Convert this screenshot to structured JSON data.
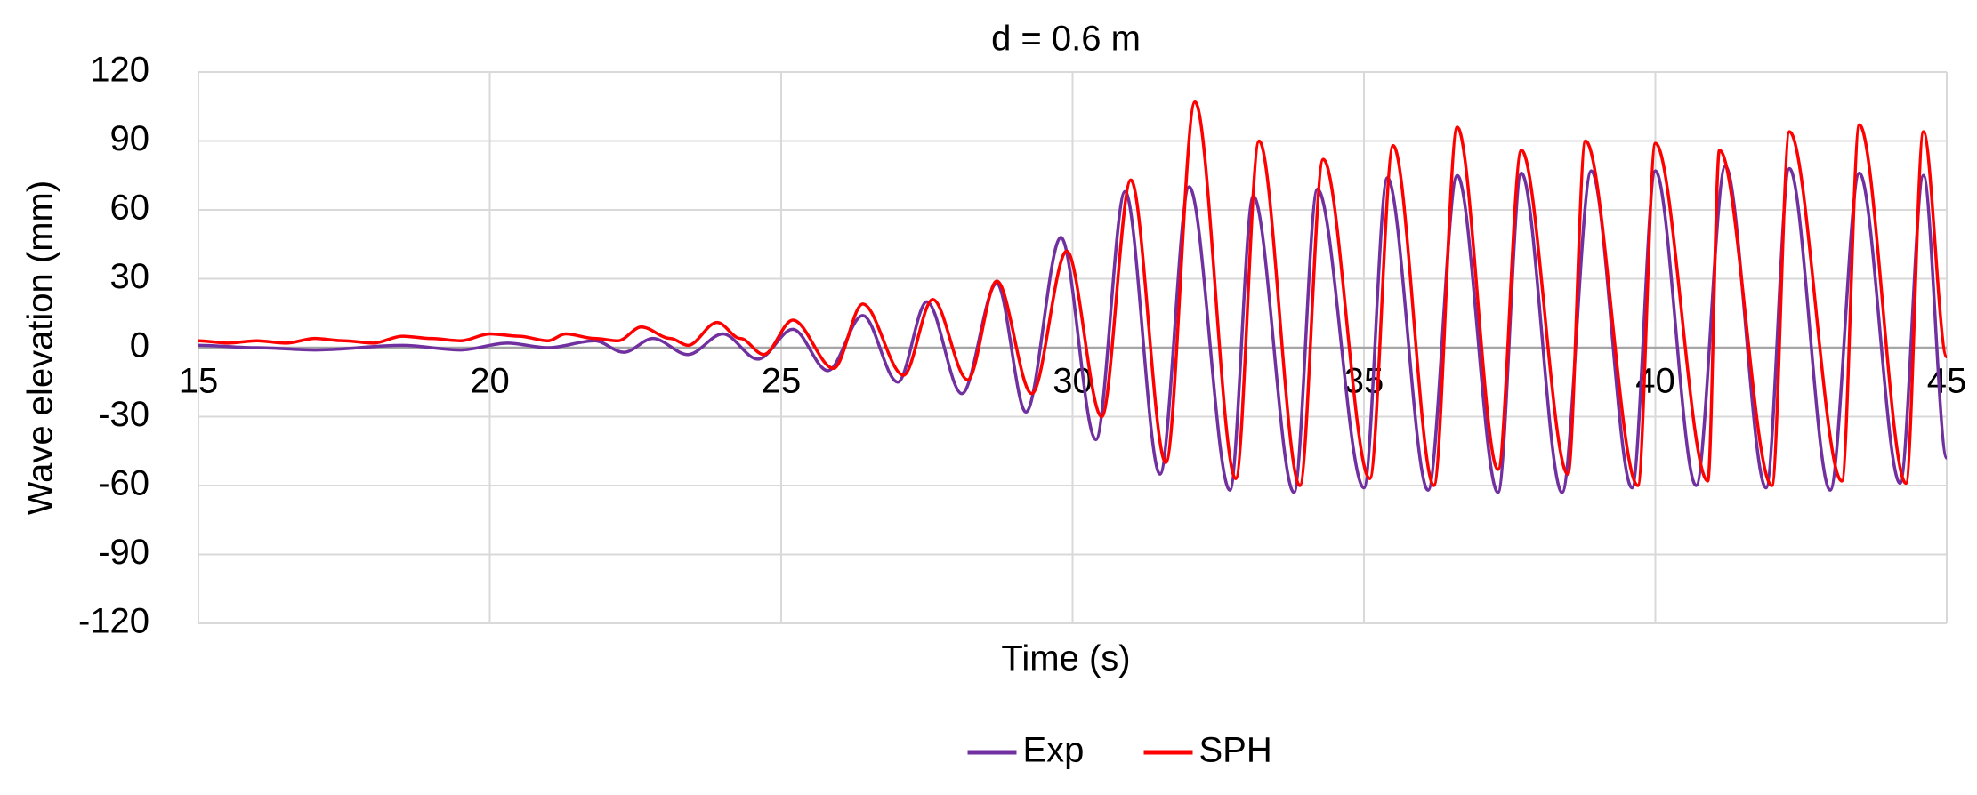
{
  "chart_data": {
    "type": "line",
    "title": "d = 0.6 m",
    "x_label": "Time (s)",
    "y_label": "Wave elevation (mm)",
    "xlim": [
      15,
      45
    ],
    "xticks": [
      15,
      20,
      25,
      30,
      35,
      40,
      45
    ],
    "ylim": [
      -120,
      120
    ],
    "yticks": [
      -120,
      -90,
      -60,
      -30,
      0,
      30,
      60,
      90,
      120
    ],
    "grid": true,
    "legend": "bottom",
    "series": [
      {
        "name": "Exp",
        "color": "#7030a0",
        "x": [
          15,
          16,
          17,
          18.5,
          19.5,
          20.3,
          21,
          21.8,
          22.3,
          22.8,
          23.4,
          24,
          24.6,
          25.2,
          25.8,
          26.4,
          27.0,
          27.5,
          28.1,
          28.7,
          29.2,
          29.8,
          30.4,
          30.9,
          31.5,
          32.0,
          32.7,
          33.1,
          33.8,
          34.2,
          35.0,
          35.4,
          36.1,
          36.6,
          37.3,
          37.7,
          38.4,
          38.9,
          39.6,
          40.0,
          40.7,
          41.2,
          41.9,
          42.3,
          43.0,
          43.5,
          44.2,
          44.6,
          45
        ],
        "values": [
          1,
          0,
          -1,
          1,
          -1,
          2,
          0,
          3,
          -2,
          4,
          -3,
          6,
          -5,
          8,
          -10,
          14,
          -15,
          20,
          -20,
          28,
          -28,
          48,
          -40,
          68,
          -55,
          70,
          -62,
          66,
          -63,
          69,
          -61,
          74,
          -62,
          75,
          -63,
          76,
          -63,
          77,
          -61,
          77,
          -60,
          79,
          -61,
          78,
          -62,
          76,
          -59,
          75,
          -48
        ]
      },
      {
        "name": "SPH",
        "color": "#ff0000",
        "x": [
          15,
          15.5,
          16,
          16.5,
          17,
          17.5,
          18,
          18.5,
          19,
          19.5,
          20,
          20.5,
          21,
          21.3,
          21.8,
          22.2,
          22.6,
          23.1,
          23.4,
          23.9,
          24.3,
          24.7,
          25.2,
          25.9,
          26.4,
          27.1,
          27.6,
          28.2,
          28.7,
          29.3,
          29.9,
          30.5,
          31.0,
          31.6,
          32.1,
          32.8,
          33.2,
          33.9,
          34.3,
          35.1,
          35.5,
          36.2,
          36.6,
          37.3,
          37.7,
          38.5,
          38.8,
          39.7,
          40.0,
          40.9,
          41.1,
          42.0,
          42.3,
          43.2,
          43.5,
          44.3,
          44.6,
          45
        ],
        "values": [
          3,
          2,
          3,
          2,
          4,
          3,
          2,
          5,
          4,
          3,
          6,
          5,
          3,
          6,
          4,
          3,
          9,
          4,
          1,
          11,
          4,
          -3,
          12,
          -9,
          19,
          -12,
          21,
          -14,
          29,
          -20,
          42,
          -30,
          73,
          -50,
          107,
          -57,
          90,
          -60,
          82,
          -57,
          88,
          -60,
          96,
          -53,
          86,
          -55,
          90,
          -60,
          89,
          -58,
          86,
          -60,
          94,
          -58,
          97,
          -59,
          94,
          -4
        ]
      }
    ]
  }
}
